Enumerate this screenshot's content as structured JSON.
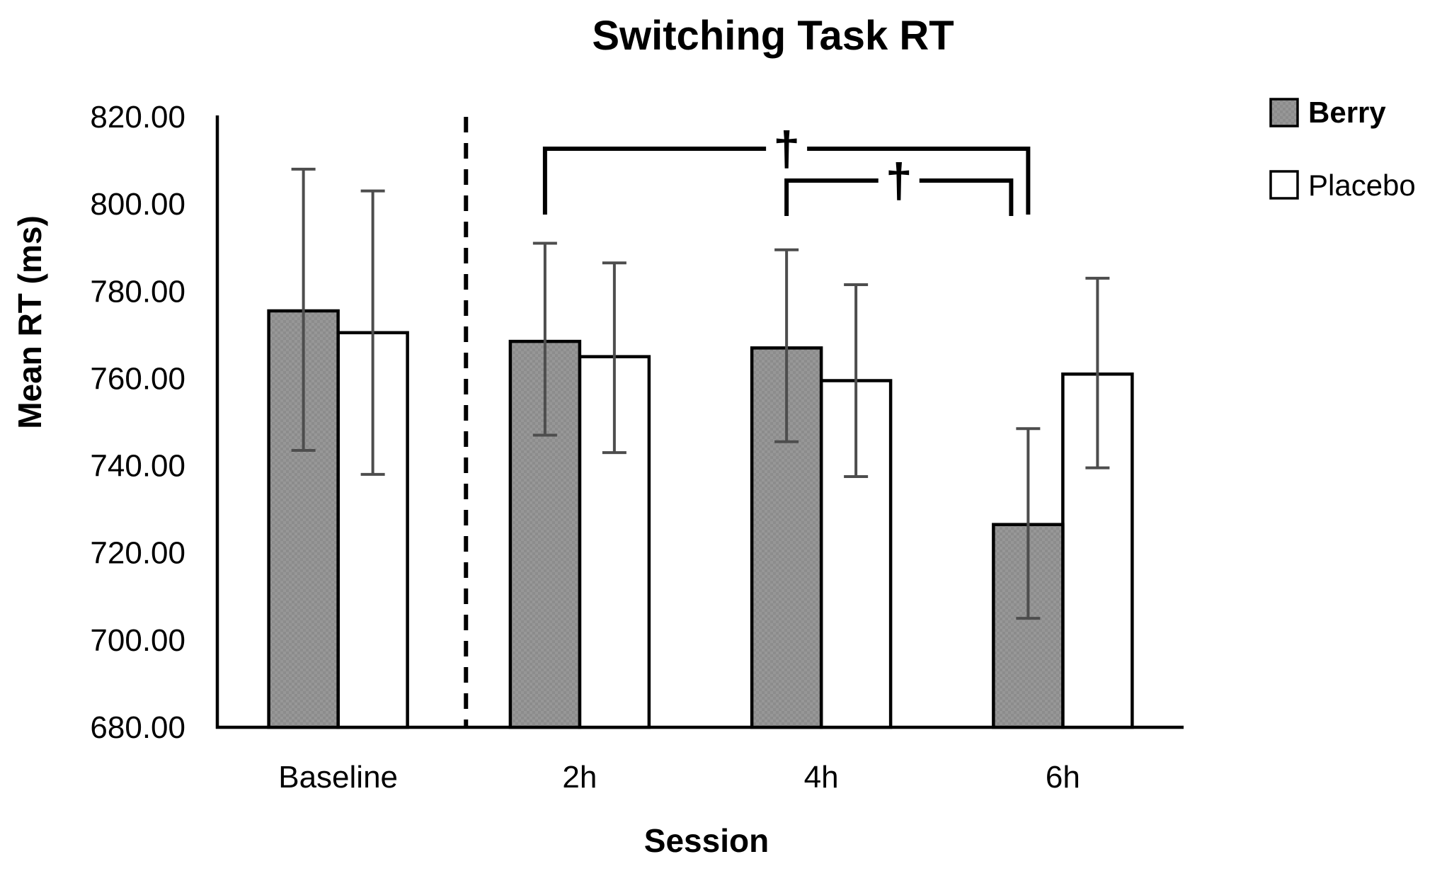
{
  "chart_data": {
    "type": "bar",
    "title": "Switching Task RT",
    "xlabel": "Session",
    "ylabel": "Mean RT (ms)",
    "categories": [
      "Baseline",
      "2h",
      "4h",
      "6h"
    ],
    "series": [
      {
        "name": "Berry",
        "values": [
          775.5,
          768.5,
          767.0,
          726.5
        ],
        "err_upper": [
          808.0,
          791.0,
          789.5,
          748.5
        ],
        "err_lower": [
          743.5,
          747.0,
          745.5,
          705.0
        ],
        "fill": "gray-checker-pattern"
      },
      {
        "name": "Placebo",
        "values": [
          770.5,
          765.0,
          759.5,
          761.0
        ],
        "err_upper": [
          803.0,
          786.5,
          781.5,
          783.0
        ],
        "err_lower": [
          738.0,
          743.0,
          737.5,
          739.5
        ],
        "fill": "white"
      }
    ],
    "ylim": [
      680,
      820
    ],
    "ytick_step": 20,
    "ytick_labels": [
      "680.00",
      "700.00",
      "720.00",
      "740.00",
      "760.00",
      "780.00",
      "800.00",
      "820.00"
    ],
    "grid": false,
    "legend_position": "right",
    "separator_dashed_after_category": "Baseline",
    "annotations": [
      {
        "symbol": "†",
        "from": "2h",
        "to": "6h",
        "on_series": "Berry",
        "level": 1,
        "end_nudge": 0
      },
      {
        "symbol": "†",
        "from": "4h",
        "to": "6h",
        "on_series": "Berry",
        "level": 2,
        "end_nudge": -24
      }
    ],
    "colors": {
      "bar_border": "#000000",
      "berry_fill_light": "#909090",
      "berry_fill_dark": "#7f7f7f",
      "placebo_fill": "#ffffff",
      "error_bar": "#4d4d4d",
      "axis": "#000000",
      "bracket": "#000000"
    }
  }
}
